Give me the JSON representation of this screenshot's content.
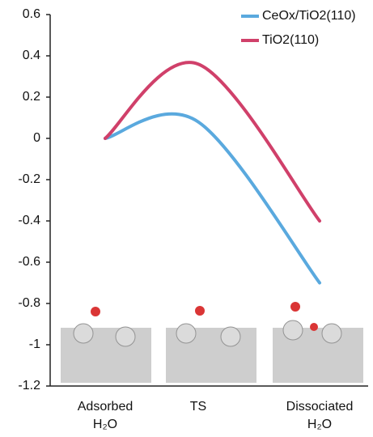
{
  "chart_data": {
    "type": "line",
    "categories": [
      "Adsorbed H₂O",
      "TS",
      "Dissociated H₂O"
    ],
    "series": [
      {
        "name": "CeOx/TiO2(110)",
        "color": "#5aa9de",
        "values": [
          0,
          0.08,
          -0.7
        ]
      },
      {
        "name": "TiO2(110)",
        "color": "#d0406a",
        "values": [
          0,
          0.36,
          -0.4
        ]
      }
    ],
    "ylim": [
      -1.2,
      0.6
    ],
    "yticks": [
      -1.2,
      -1,
      -0.8,
      -0.6,
      -0.4,
      -0.2,
      0,
      0.2,
      0.4,
      0.6
    ],
    "legend": "upper right"
  }
}
